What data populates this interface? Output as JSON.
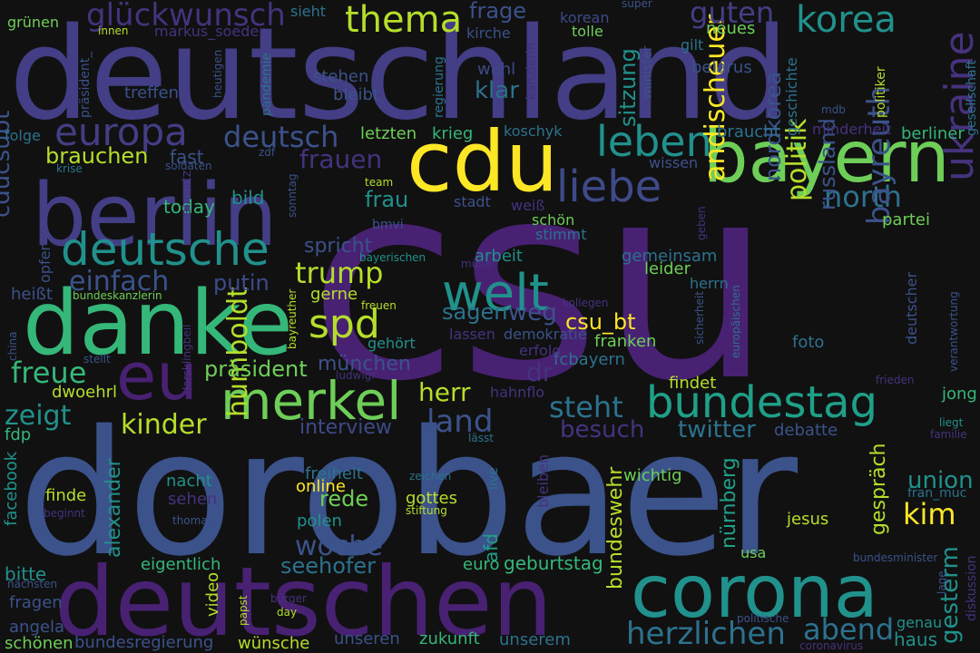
{
  "palette": {
    "background": "#111111",
    "deep_purple": "#482173",
    "purple": "#433e85",
    "indigo": "#3b528b",
    "blue": "#31688e",
    "steel": "#2c728e",
    "teal": "#21918c",
    "teal_green": "#1fa088",
    "green": "#35b779",
    "lime": "#6ece58",
    "yellow_green": "#b5de2b",
    "yellow": "#fde725",
    "dark": "#46327e",
    "dim": "#3e4a89"
  },
  "words": [
    {
      "text": "csu",
      "color": "#482173"
    },
    {
      "text": "dorobaer",
      "color": "#3b528b"
    },
    {
      "text": "deutschland",
      "color": "#433e85"
    },
    {
      "text": "deutschen",
      "color": "#482173"
    },
    {
      "text": "bayern",
      "color": "#6ece58"
    },
    {
      "text": "cdu",
      "color": "#fde725"
    },
    {
      "text": "berlin",
      "color": "#433e85"
    },
    {
      "text": "danke",
      "color": "#35b779"
    },
    {
      "text": "corona",
      "color": "#21918c"
    },
    {
      "text": "bundestag",
      "color": "#1fa088"
    },
    {
      "text": "deutsche",
      "color": "#21918c"
    },
    {
      "text": "merkel",
      "color": "#6ece58"
    },
    {
      "text": "welt",
      "color": "#21918c"
    },
    {
      "text": "eu",
      "color": "#482173"
    },
    {
      "text": "liebe",
      "color": "#3e4a89"
    },
    {
      "text": "leben",
      "color": "#21918c"
    },
    {
      "text": "europa",
      "color": "#433e85"
    },
    {
      "text": "korea",
      "color": "#21918c"
    },
    {
      "text": "thema",
      "color": "#b5de2b"
    },
    {
      "text": "spd",
      "color": "#b5de2b"
    },
    {
      "text": "ukraine",
      "color": "#46327e"
    },
    {
      "text": "andischeuer",
      "color": "#fde725"
    },
    {
      "text": "humboldt",
      "color": "#b5de2b"
    },
    {
      "text": "herzlichen",
      "color": "#2c728e"
    },
    {
      "text": "deutsch",
      "color": "#3b528b"
    },
    {
      "text": "abend",
      "color": "#2c728e"
    },
    {
      "text": "glückwunsch",
      "color": "#46327e"
    },
    {
      "text": "trump",
      "color": "#b5de2b"
    },
    {
      "text": "einfach",
      "color": "#3b528b"
    },
    {
      "text": "cducsubt",
      "color": "#3b528b"
    },
    {
      "text": "north",
      "color": "#2c728e"
    },
    {
      "text": "bayreuth",
      "color": "#3b528b"
    },
    {
      "text": "politik",
      "color": "#b5de2b"
    },
    {
      "text": "nordkorea",
      "color": "#3b528b"
    },
    {
      "text": "russland",
      "color": "#3b528b"
    },
    {
      "text": "frauen",
      "color": "#46327e"
    },
    {
      "text": "guten",
      "color": "#433e85"
    },
    {
      "text": "brauchen",
      "color": "#b5de2b"
    },
    {
      "text": "freue",
      "color": "#35b779"
    },
    {
      "text": "zeigt",
      "color": "#21918c"
    },
    {
      "text": "kinder",
      "color": "#b5de2b"
    },
    {
      "text": "herr",
      "color": "#b5de2b"
    },
    {
      "text": "land",
      "color": "#3b528b"
    },
    {
      "text": "steht",
      "color": "#2c728e"
    },
    {
      "text": "besuch",
      "color": "#46327e"
    },
    {
      "text": "twitter",
      "color": "#2c728e"
    },
    {
      "text": "woche",
      "color": "#3b528b"
    },
    {
      "text": "seehofer",
      "color": "#2c728e"
    },
    {
      "text": "rede",
      "color": "#6ece58"
    },
    {
      "text": "gesterm",
      "color": "#21918c"
    },
    {
      "text": "union",
      "color": "#21918c"
    },
    {
      "text": "kim",
      "color": "#fde725"
    },
    {
      "text": "dr",
      "color": "#46327e"
    },
    {
      "text": "weg",
      "color": "#3b528b"
    },
    {
      "text": "csu_bt",
      "color": "#fde725"
    },
    {
      "text": "sagen",
      "color": "#2c728e"
    },
    {
      "text": "münchen",
      "color": "#3b528b"
    },
    {
      "text": "präsident",
      "color": "#6ece58"
    },
    {
      "text": "interview",
      "color": "#3e4a89"
    },
    {
      "text": "alexander",
      "color": "#21918c"
    },
    {
      "text": "bundeswehr",
      "color": "#b5de2b"
    },
    {
      "text": "nürnberg",
      "color": "#1fa088"
    },
    {
      "text": "gespräch",
      "color": "#b5de2b"
    },
    {
      "text": "sitzung",
      "color": "#21918c"
    },
    {
      "text": "klar",
      "color": "#2c728e"
    },
    {
      "text": "frage",
      "color": "#3b528b"
    },
    {
      "text": "putin",
      "color": "#3e4a89"
    },
    {
      "text": "spricht",
      "color": "#3b528b"
    },
    {
      "text": "frau",
      "color": "#21918c"
    },
    {
      "text": "bild",
      "color": "#21918c"
    },
    {
      "text": "today",
      "color": "#35b779"
    },
    {
      "text": "fast",
      "color": "#3b528b"
    },
    {
      "text": "letzten",
      "color": "#6ece58"
    },
    {
      "text": "krieg",
      "color": "#35b779"
    },
    {
      "text": "koschyk",
      "color": "#2c728e"
    },
    {
      "text": "bleibt",
      "color": "#3b528b"
    },
    {
      "text": "stehen",
      "color": "#3b528b"
    },
    {
      "text": "treffen",
      "color": "#3b528b"
    },
    {
      "text": "wahl",
      "color": "#3e4a89"
    },
    {
      "text": "neues",
      "color": "#6ece58"
    },
    {
      "text": "belarus",
      "color": "#3b528b"
    },
    {
      "text": "gilt",
      "color": "#2c728e"
    },
    {
      "text": "berliner",
      "color": "#35b779"
    },
    {
      "text": "braucht",
      "color": "#2c728e"
    },
    {
      "text": "minderheit",
      "color": "#46327e"
    },
    {
      "text": "wissen",
      "color": "#3b528b"
    },
    {
      "text": "arbeit",
      "color": "#21918c"
    },
    {
      "text": "gemeinsam",
      "color": "#2c728e"
    },
    {
      "text": "leider",
      "color": "#6ece58"
    },
    {
      "text": "herrn",
      "color": "#2c728e"
    },
    {
      "text": "partei",
      "color": "#6ece58"
    },
    {
      "text": "deutscher",
      "color": "#3b528b"
    },
    {
      "text": "foto",
      "color": "#2c728e"
    },
    {
      "text": "findet",
      "color": "#b5de2b"
    },
    {
      "text": "debatte",
      "color": "#3b528b"
    },
    {
      "text": "jong",
      "color": "#35b779"
    },
    {
      "text": "franken",
      "color": "#6ece58"
    },
    {
      "text": "fcbayern",
      "color": "#2c728e"
    },
    {
      "text": "demokratie",
      "color": "#3b528b"
    },
    {
      "text": "lassen",
      "color": "#46327e"
    },
    {
      "text": "erfolg",
      "color": "#46327e"
    },
    {
      "text": "hahnflo",
      "color": "#46327e"
    },
    {
      "text": "dwoehrl",
      "color": "#b5de2b"
    },
    {
      "text": "gehört",
      "color": "#21918c"
    },
    {
      "text": "gerne",
      "color": "#b5de2b"
    },
    {
      "text": "heißt",
      "color": "#3b528b"
    },
    {
      "text": "opfer",
      "color": "#3b528b"
    },
    {
      "text": "fdp",
      "color": "#35b779"
    },
    {
      "text": "facebook",
      "color": "#21918c"
    },
    {
      "text": "finde",
      "color": "#b5de2b"
    },
    {
      "text": "nacht",
      "color": "#21918c"
    },
    {
      "text": "sehen",
      "color": "#46327e"
    },
    {
      "text": "freiheit",
      "color": "#2c728e"
    },
    {
      "text": "online",
      "color": "#fde725"
    },
    {
      "text": "gottes",
      "color": "#b5de2b"
    },
    {
      "text": "polen",
      "color": "#21918c"
    },
    {
      "text": "afd",
      "color": "#1fa088"
    },
    {
      "text": "euro",
      "color": "#35b779"
    },
    {
      "text": "geburtstag",
      "color": "#35b779"
    },
    {
      "text": "eigentlich",
      "color": "#35b779"
    },
    {
      "text": "bitte",
      "color": "#21918c"
    },
    {
      "text": "fragen",
      "color": "#3b528b"
    },
    {
      "text": "angela",
      "color": "#3b528b"
    },
    {
      "text": "schönen",
      "color": "#6ece58"
    },
    {
      "text": "bundesregierung",
      "color": "#3b528b"
    },
    {
      "text": "wünsche",
      "color": "#b5de2b"
    },
    {
      "text": "unseren",
      "color": "#3b528b"
    },
    {
      "text": "zukunft",
      "color": "#35b779"
    },
    {
      "text": "unserem",
      "color": "#2c728e"
    },
    {
      "text": "video",
      "color": "#b5de2b"
    },
    {
      "text": "wichtig",
      "color": "#6ece58"
    },
    {
      "text": "usa",
      "color": "#6ece58"
    },
    {
      "text": "jesus",
      "color": "#b5de2b"
    },
    {
      "text": "haus",
      "color": "#21918c"
    },
    {
      "text": "genau",
      "color": "#21918c"
    },
    {
      "text": "gesellschaft",
      "color": "#2c728e"
    },
    {
      "text": "politiker",
      "color": "#b5de2b"
    },
    {
      "text": "geschichte",
      "color": "#2c728e"
    },
    {
      "text": "markus_soeder",
      "color": "#46327e"
    },
    {
      "text": "grünen",
      "color": "#6ece58"
    },
    {
      "text": "kirche",
      "color": "#3b528b"
    },
    {
      "text": "korean",
      "color": "#3e4a89"
    },
    {
      "text": "tolle",
      "color": "#6ece58"
    },
    {
      "text": "sieht",
      "color": "#2c728e"
    },
    {
      "text": "innen",
      "color": "#b5de2b"
    },
    {
      "text": "folge",
      "color": "#2c728e"
    },
    {
      "text": "schön",
      "color": "#6ece58"
    },
    {
      "text": "stimmt",
      "color": "#2c728e"
    },
    {
      "text": "weiß",
      "color": "#46327e"
    },
    {
      "text": "stadt",
      "color": "#3b528b"
    },
    {
      "text": "bmvi",
      "color": "#3b528b"
    },
    {
      "text": "live",
      "color": "#2c728e"
    },
    {
      "text": "bleiben",
      "color": "#46327e"
    },
    {
      "text": "stiftung",
      "color": "#b5de2b"
    },
    {
      "text": "zeichen",
      "color": "#2c728e"
    },
    {
      "text": "bundeskanzlerin",
      "color": "#6ece58"
    },
    {
      "text": "bayerischen",
      "color": "#21918c"
    },
    {
      "text": "freuen",
      "color": "#b5de2b"
    },
    {
      "text": "soldaten",
      "color": "#3b528b"
    },
    {
      "text": "krise",
      "color": "#2c728e"
    },
    {
      "text": "kanzlerin",
      "color": "#46327e"
    },
    {
      "text": "regierung",
      "color": "#2c728e"
    },
    {
      "text": "pandemie",
      "color": "#2c728e"
    },
    {
      "text": "präsident_",
      "color": "#3b528b"
    },
    {
      "text": "heutigen",
      "color": "#3b528b"
    },
    {
      "text": "minister",
      "color": "#3b528b"
    },
    {
      "text": "mdb",
      "color": "#3b528b"
    },
    {
      "text": "super",
      "color": "#3b528b"
    },
    {
      "text": "team",
      "color": "#b5de2b"
    },
    {
      "text": "einsatz",
      "color": "#46327e"
    },
    {
      "text": "sonntag",
      "color": "#3b528b"
    },
    {
      "text": "müller",
      "color": "#46327e"
    },
    {
      "text": "kollegen",
      "color": "#46327e"
    },
    {
      "text": "bayreuther",
      "color": "#b5de2b"
    },
    {
      "text": "sicherheit",
      "color": "#3b528b"
    },
    {
      "text": "europäischen",
      "color": "#2c728e"
    },
    {
      "text": "verantwortung",
      "color": "#3b528b"
    },
    {
      "text": "frieden",
      "color": "#46327e"
    },
    {
      "text": "liegt",
      "color": "#21918c"
    },
    {
      "text": "familie",
      "color": "#46327e"
    },
    {
      "text": "fran_muc",
      "color": "#2c728e"
    },
    {
      "text": "bundesminister",
      "color": "#3b528b"
    },
    {
      "text": "diskussion",
      "color": "#46327e"
    },
    {
      "text": "lage",
      "color": "#3b528b"
    },
    {
      "text": "politische",
      "color": "#3b528b"
    },
    {
      "text": "coronavirus",
      "color": "#46327e"
    },
    {
      "text": "papst",
      "color": "#b5de2b"
    },
    {
      "text": "day",
      "color": "#b5de2b"
    },
    {
      "text": "bürger",
      "color": "#46327e"
    },
    {
      "text": "nächsten",
      "color": "#3b528b"
    },
    {
      "text": "beginnt",
      "color": "#46327e"
    },
    {
      "text": "thomas",
      "color": "#3b528b"
    },
    {
      "text": "china",
      "color": "#3b528b"
    },
    {
      "text": "stellt",
      "color": "#3b528b"
    },
    {
      "text": "ludwigr",
      "color": "#46327e"
    },
    {
      "text": "lässt",
      "color": "#2c728e"
    },
    {
      "text": "larsklingbeil",
      "color": "#46327e"
    },
    {
      "text": "zdf",
      "color": "#3b528b"
    },
    {
      "text": "geben",
      "color": "#46327e"
    }
  ]
}
